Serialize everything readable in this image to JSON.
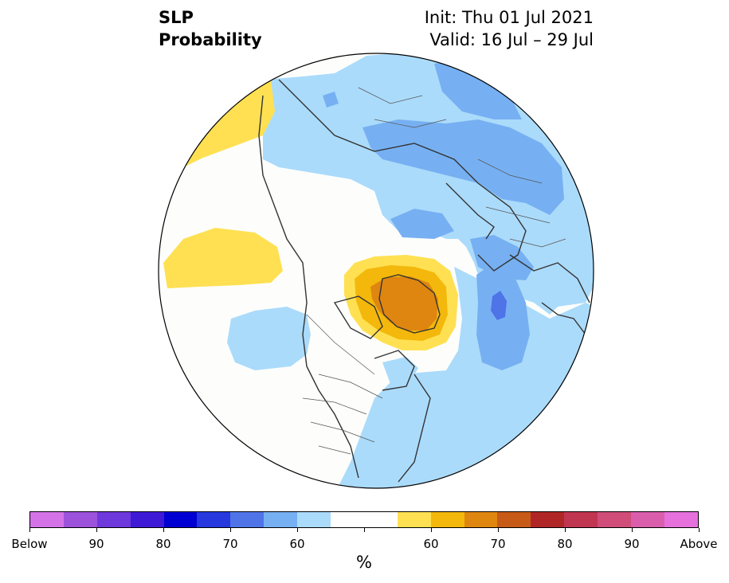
{
  "title": {
    "left_line1": "SLP",
    "left_line2": "Probability",
    "right_line1": "Init: Thu 01 Jul 2021",
    "right_line2": "Valid: 16 Jul – 29 Jul"
  },
  "colorbar": {
    "unit_label": "%",
    "colors": [
      "#d473e8",
      "#9d52dc",
      "#6d38dc",
      "#3e1ad6",
      "#0000d2",
      "#2638de",
      "#4e74e8",
      "#76b0f2",
      "#abdbfb",
      "#ffffff",
      "#ffffff",
      "#ffe052",
      "#f3b80b",
      "#df8610",
      "#c75a17",
      "#b02626",
      "#c03550",
      "#cf4d78",
      "#da5eac",
      "#e671dc"
    ],
    "tick_labels": [
      "Below",
      "90",
      "80",
      "70",
      "60",
      "60",
      "70",
      "80",
      "90",
      "Above"
    ]
  },
  "map_colors": {
    "ocean_land_base": "#fdfefc",
    "light_blue": "#abdbfb",
    "mid_blue": "#76b0f2",
    "deep_blue": "#4e74e8",
    "yellow": "#ffe052",
    "gold": "#f3b80b",
    "orange": "#df8610",
    "coast": "#333333"
  }
}
